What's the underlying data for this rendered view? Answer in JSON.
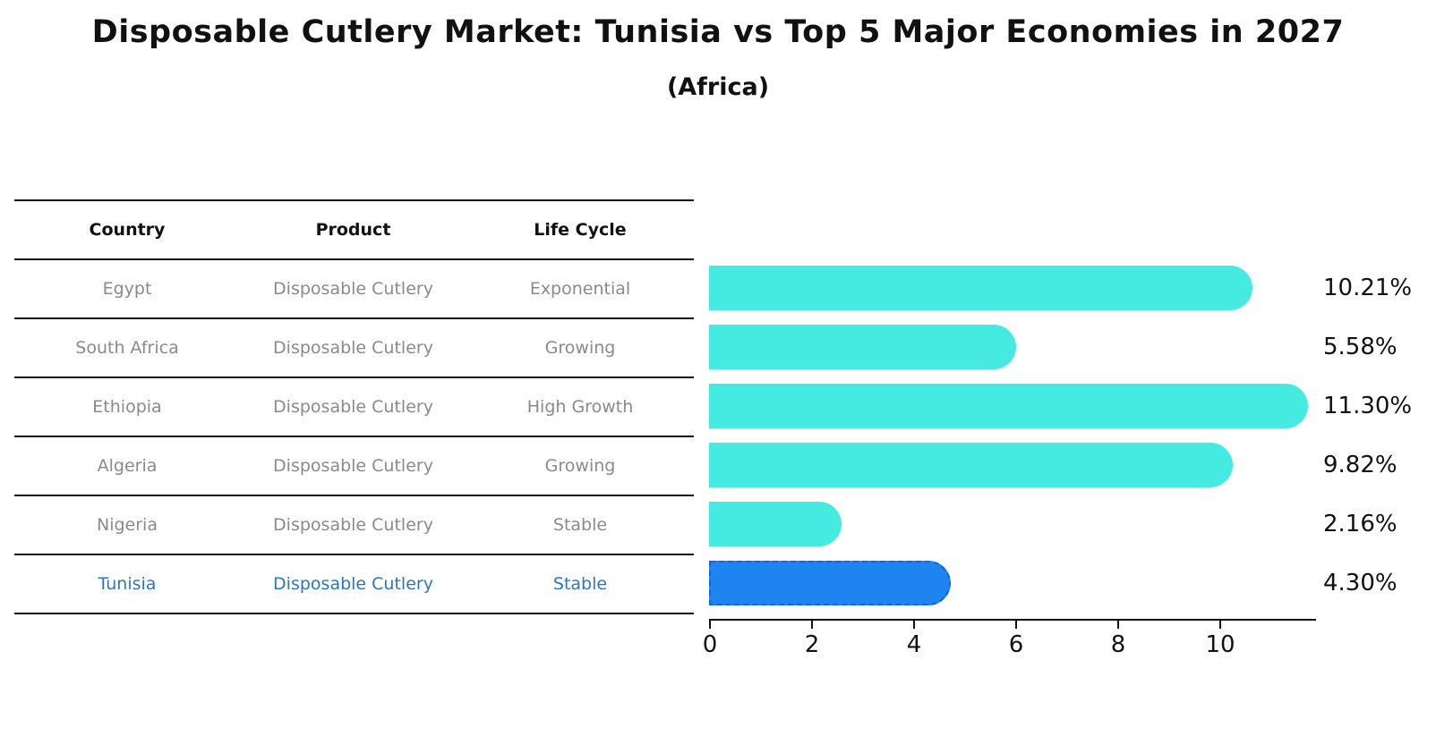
{
  "title": "Disposable Cutlery Market: Tunisia vs Top 5 Major Economies in 2027",
  "subtitle": "(Africa)",
  "table": {
    "headers": [
      "Country",
      "Product",
      "Life Cycle"
    ],
    "rows": [
      {
        "country": "Egypt",
        "product": "Disposable Cutlery",
        "life_cycle": "Exponential",
        "highlighted": false
      },
      {
        "country": "South Africa",
        "product": "Disposable Cutlery",
        "life_cycle": "Growing",
        "highlighted": false
      },
      {
        "country": "Ethiopia",
        "product": "Disposable Cutlery",
        "life_cycle": "High Growth",
        "highlighted": false
      },
      {
        "country": "Algeria",
        "product": "Disposable Cutlery",
        "life_cycle": "Growing",
        "highlighted": false
      },
      {
        "country": "Nigeria",
        "product": "Disposable Cutlery",
        "life_cycle": "Stable",
        "highlighted": false
      },
      {
        "country": "Tunisia",
        "product": "Disposable Cutlery",
        "life_cycle": "Stable",
        "highlighted": true
      }
    ]
  },
  "chart_data": {
    "type": "bar",
    "orientation": "horizontal",
    "categories": [
      "Egypt",
      "South Africa",
      "Ethiopia",
      "Algeria",
      "Nigeria",
      "Tunisia"
    ],
    "values": [
      10.21,
      5.58,
      11.3,
      9.82,
      2.16,
      4.3
    ],
    "value_labels": [
      "10.21%",
      "5.58%",
      "11.30%",
      "9.82%",
      "2.16%",
      "4.30%"
    ],
    "highlight_index": 5,
    "x_tick_labels": [
      "0",
      "2",
      "4",
      "6",
      "8",
      "10"
    ],
    "x_tick_values": [
      0,
      2,
      4,
      6,
      8,
      10
    ],
    "xlim": [
      0,
      11.9
    ],
    "grid": false,
    "legend": "none",
    "title": "Disposable Cutlery Market: Tunisia vs Top 5 Major Economies in 2027 (Africa)",
    "xlabel": "",
    "ylabel": ""
  },
  "colors": {
    "bar_default": "#45ebe1",
    "bar_highlight": "#1e84f0",
    "bar_highlight_border": "#1565d8",
    "table_text": "#8a8a8a",
    "highlight_text": "#2b76c2",
    "axis": "#111111"
  }
}
